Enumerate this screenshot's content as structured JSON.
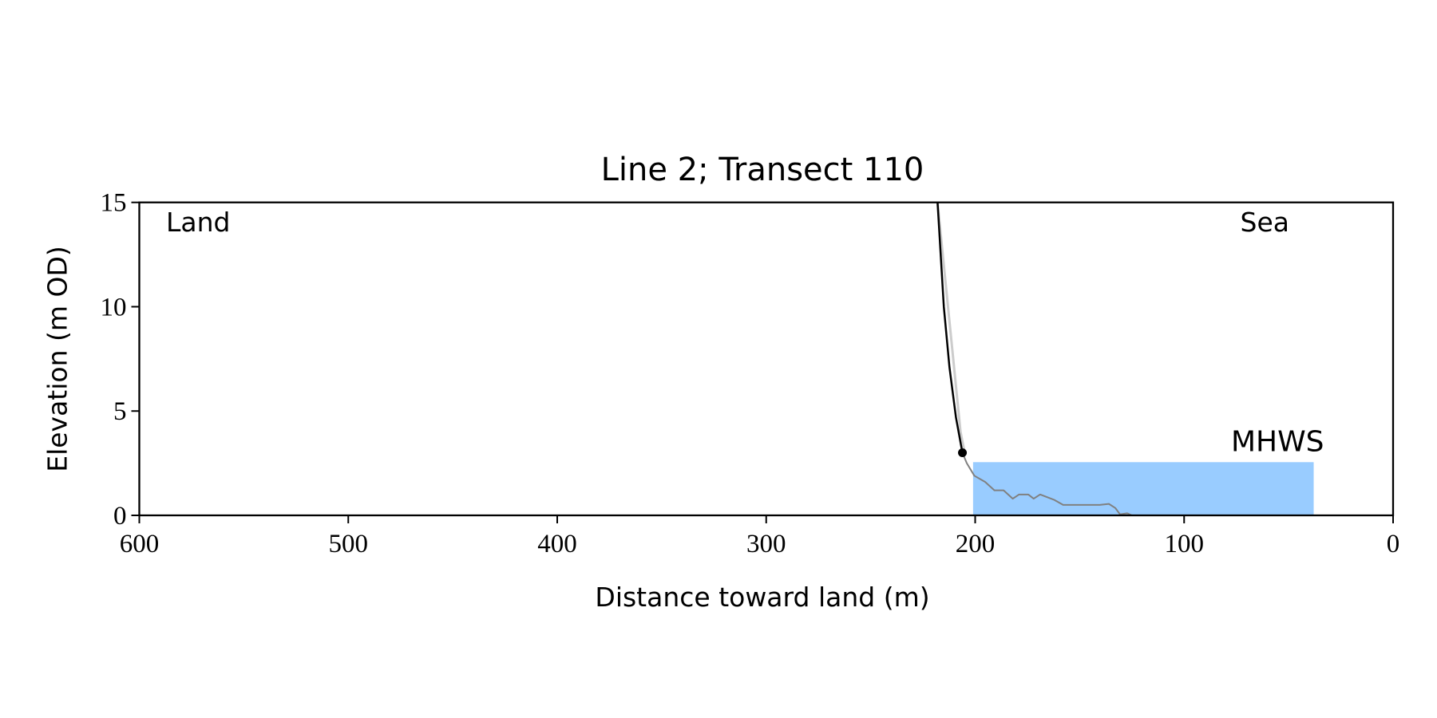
{
  "chart_data": {
    "type": "line",
    "title": "Line 2; Transect 110",
    "x_label": "Distance toward land (m)",
    "y_label": "Elevation (m OD)",
    "xlim": [
      600,
      0
    ],
    "ylim": [
      0,
      15
    ],
    "xticks": [
      600,
      500,
      400,
      300,
      200,
      100,
      0
    ],
    "yticks": [
      0,
      5,
      10,
      15
    ],
    "annotations": [
      "Land",
      "Sea"
    ],
    "mhws": {
      "label": "MHWS",
      "value": 2.55,
      "x": [
        201,
        38
      ],
      "color": "#99ccff",
      "label_color": "#6699cc"
    },
    "series": [
      {
        "color": "#cccccc",
        "width": 3,
        "x": [
          218,
          213,
          210,
          207,
          205
        ],
        "values": [
          15,
          10,
          7,
          4,
          3
        ]
      },
      {
        "color": "#808080",
        "width": 2,
        "x": [
          206.1,
          204,
          200.4,
          195.2,
          190.8,
          186.4,
          182,
          179,
          174.6,
          172,
          168.9,
          162.3,
          157.9,
          153.5,
          146.9,
          140.4,
          136,
          132.9,
          130.7,
          127.2,
          125
        ],
        "values": [
          3.0,
          2.5,
          1.9,
          1.6,
          1.2,
          1.2,
          0.8,
          1.0,
          1.0,
          0.8,
          1.0,
          0.75,
          0.5,
          0.5,
          0.5,
          0.5,
          0.55,
          0.35,
          0.05,
          0.1,
          0
        ]
      },
      {
        "color": "#000000",
        "width": 2.5,
        "x": [
          218,
          215,
          212.3,
          209.2,
          206.1
        ],
        "values": [
          15,
          10,
          7.1,
          4.7,
          3.0
        ]
      },
      {
        "color": "#000000",
        "marker": true,
        "x": [
          206.1
        ],
        "values": [
          3.0
        ]
      }
    ]
  }
}
